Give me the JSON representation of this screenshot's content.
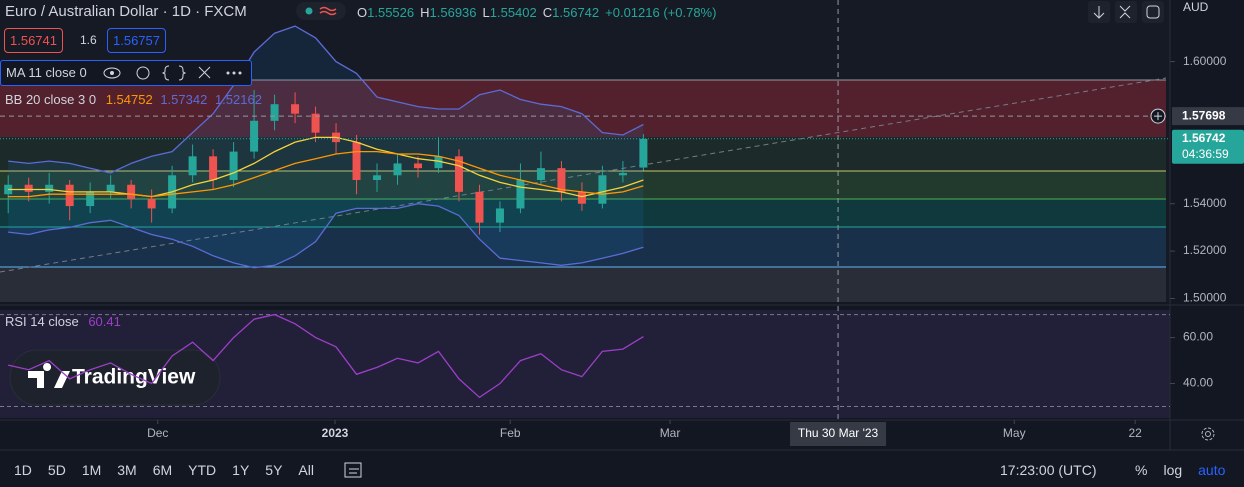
{
  "header": {
    "title": "Euro / Australian Dollar · 1D · FXCM",
    "ohlc": [
      {
        "label": "O",
        "value": 1.55526
      },
      {
        "label": "H",
        "value": 1.56936
      },
      {
        "label": "L",
        "value": 1.55402
      },
      {
        "label": "C",
        "value": 1.56742
      }
    ],
    "change": "+0.01216 (+0.78%)",
    "bid": 1.56741,
    "spread": 1.6,
    "ask": 1.56757
  },
  "indicators": {
    "ma": "MA 11 close 0",
    "bb": "BB 20 close 3 0",
    "bb_values": [
      1.54752,
      1.57342,
      1.52162
    ],
    "rsi": "RSI 14 close",
    "rsi_value": 60.41
  },
  "logo": "TradingView",
  "toolbar": {
    "ranges": [
      "1D",
      "5D",
      "1M",
      "3M",
      "6M",
      "YTD",
      "1Y",
      "5Y",
      "All"
    ],
    "time": "17:23:00 (UTC)",
    "options": [
      "%",
      "log",
      "auto"
    ]
  },
  "chart_data": [
    {
      "type": "candlestick",
      "currency": "AUD",
      "categories": [
        null,
        null,
        null,
        null,
        null,
        null,
        null,
        null,
        null,
        null,
        null,
        null,
        null,
        null,
        null,
        null,
        null,
        null,
        null,
        null,
        null,
        null,
        null,
        null,
        null,
        null,
        null,
        null,
        null,
        null,
        null,
        null
      ],
      "open": [
        1.544,
        1.548,
        1.545,
        1.548,
        1.539,
        1.545,
        1.548,
        1.542,
        1.538,
        1.552,
        1.56,
        1.55,
        1.562,
        1.575,
        1.582,
        1.578,
        1.57,
        1.566,
        1.55,
        1.552,
        1.557,
        1.555,
        1.56,
        1.545,
        1.532,
        1.538,
        1.55,
        1.555,
        1.545,
        1.54,
        1.552,
        1.55526
      ],
      "high": [
        1.552,
        1.551,
        1.553,
        1.55,
        1.549,
        1.552,
        1.55,
        1.546,
        1.556,
        1.565,
        1.563,
        1.566,
        1.588,
        1.586,
        1.587,
        1.581,
        1.574,
        1.569,
        1.557,
        1.561,
        1.56,
        1.568,
        1.563,
        1.548,
        1.541,
        1.557,
        1.562,
        1.558,
        1.549,
        1.556,
        1.558,
        1.56936
      ],
      "low": [
        1.536,
        1.541,
        1.54,
        1.533,
        1.536,
        1.542,
        1.538,
        1.532,
        1.536,
        1.549,
        1.546,
        1.547,
        1.559,
        1.571,
        1.574,
        1.566,
        1.561,
        1.544,
        1.545,
        1.548,
        1.551,
        1.553,
        1.541,
        1.527,
        1.528,
        1.536,
        1.548,
        1.541,
        1.537,
        1.538,
        1.549,
        1.55402
      ],
      "close": [
        1.548,
        1.545,
        1.548,
        1.539,
        1.545,
        1.548,
        1.542,
        1.538,
        1.552,
        1.56,
        1.55,
        1.562,
        1.575,
        1.582,
        1.578,
        1.57,
        1.566,
        1.55,
        1.552,
        1.557,
        1.555,
        1.56,
        1.545,
        1.532,
        1.538,
        1.55,
        1.555,
        1.545,
        1.54,
        1.552,
        1.553,
        1.56742
      ],
      "up_color": "#26a69a",
      "down_color": "#ef5350",
      "series": [
        {
          "color": "#f5d33a",
          "values": [
            1.546,
            1.546,
            1.546,
            1.545,
            1.545,
            1.545,
            1.544,
            1.543,
            1.545,
            1.548,
            1.55,
            1.553,
            1.557,
            1.562,
            1.566,
            1.568,
            1.568,
            1.566,
            1.563,
            1.561,
            1.559,
            1.558,
            1.556,
            1.552,
            1.549,
            1.547,
            1.546,
            1.545,
            1.543,
            1.545,
            1.547,
            1.55
          ]
        },
        {
          "color": "#ff9800",
          "values": [
            1.543,
            1.543,
            1.544,
            1.544,
            1.544,
            1.544,
            1.544,
            1.543,
            1.544,
            1.545,
            1.546,
            1.548,
            1.551,
            1.554,
            1.557,
            1.559,
            1.561,
            1.562,
            1.562,
            1.561,
            1.561,
            1.56,
            1.558,
            1.555,
            1.552,
            1.55,
            1.548,
            1.546,
            1.545,
            1.544,
            1.545,
            1.54752
          ]
        },
        {
          "color": "#5c6bd6",
          "values": [
            1.558,
            1.557,
            1.558,
            1.557,
            1.555,
            1.553,
            1.557,
            1.56,
            1.562,
            1.57,
            1.578,
            1.59,
            1.604,
            1.612,
            1.615,
            1.61,
            1.6,
            1.595,
            1.585,
            1.583,
            1.581,
            1.58,
            1.58,
            1.586,
            1.588,
            1.584,
            1.582,
            1.581,
            1.578,
            1.57,
            1.569,
            1.57342
          ]
        },
        {
          "color": "#5c6bd6",
          "values": [
            1.528,
            1.527,
            1.529,
            1.53,
            1.532,
            1.533,
            1.53,
            1.527,
            1.525,
            1.522,
            1.518,
            1.515,
            1.513,
            1.514,
            1.518,
            1.524,
            1.536,
            1.538,
            1.538,
            1.538,
            1.54,
            1.539,
            1.535,
            1.525,
            1.517,
            1.516,
            1.515,
            1.514,
            1.515,
            1.517,
            1.519,
            1.52162
          ]
        }
      ],
      "xlim": [
        -0.4,
        56.7
      ],
      "xticks": [
        {
          "value": 7.3,
          "label": "Dec"
        },
        {
          "value": 15.95,
          "label": "2023"
        },
        {
          "value": 24.5,
          "label": "Feb"
        },
        {
          "value": 32.3,
          "label": "Mar"
        },
        {
          "value": 49.1,
          "label": "May"
        },
        {
          "value": 55.0,
          "label": "22"
        }
      ],
      "ylim": [
        1.4985,
        1.626
      ],
      "yticks": [
        {
          "value": 1.5,
          "label": "1.50000"
        },
        {
          "value": 1.52,
          "label": "1.52000"
        },
        {
          "value": 1.54,
          "label": "1.54000"
        },
        {
          "value": 1.6,
          "label": "1.60000"
        }
      ],
      "last_price": 1.56742,
      "countdown": "04:36:59",
      "crosshair": {
        "price": 1.57698,
        "x": 40.5,
        "label": "Thu 30 Mar '23"
      }
    },
    {
      "type": "line",
      "values": [
        48,
        46,
        50,
        42,
        46,
        49,
        44,
        40,
        52,
        58,
        50,
        60,
        68,
        70,
        66,
        60,
        56,
        44,
        47,
        51,
        49,
        54,
        42,
        34,
        40,
        50,
        53,
        46,
        43,
        54,
        55,
        60.41
      ],
      "color": "#9c3fc8",
      "ylim": [
        25,
        72
      ],
      "yticks": [
        {
          "value": 40,
          "label": "40.00"
        },
        {
          "value": 60,
          "label": "60.00"
        }
      ],
      "bands": [
        30,
        70
      ]
    }
  ]
}
